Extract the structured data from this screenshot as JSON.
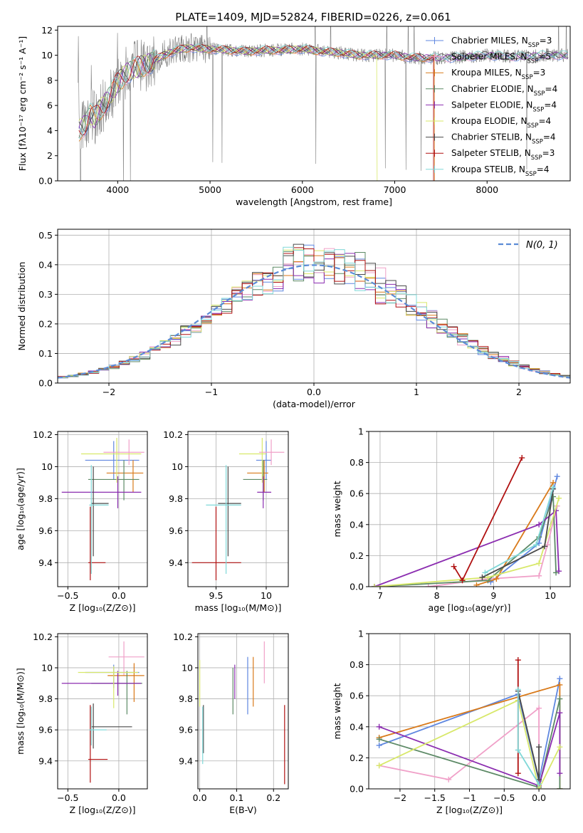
{
  "figure": {
    "title": "PLATE=1409, MJD=52824, FIBERID=0226, z=0.061"
  },
  "colors": {
    "Chabrier MILES": "#5f87e0",
    "Salpeter MILES": "#f0a0c8",
    "Kroupa MILES": "#d97a1a",
    "Chabrier ELODIE": "#5d8a66",
    "Salpeter ELODIE": "#8b2db0",
    "Kroupa ELODIE": "#d8e86a",
    "Chabrier STELIB": "#4a4a4a",
    "Salpeter STELIB": "#b01010",
    "Kroupa STELIB": "#80d8d8",
    "data": "#808080"
  },
  "chart_data": [
    {
      "id": "spectrum",
      "type": "line",
      "xlabel": "wavelength [Angstrom, rest frame]",
      "ylabel": "Flux [fλ10⁻¹⁷ erg cm⁻² s⁻¹ A⁻¹]",
      "xlim": [
        3350,
        8900
      ],
      "ylim": [
        0,
        12.3
      ],
      "xticks": [
        4000,
        5000,
        6000,
        7000,
        8000
      ],
      "yticks": [
        0,
        2,
        4,
        6,
        8,
        10,
        12
      ],
      "legend_position": "top-right",
      "legend": [
        {
          "name": "Chabrier MILES",
          "sub": "SSP",
          "n": "3"
        },
        {
          "name": "Salpeter MILES",
          "sub": "SSP",
          "n": "5"
        },
        {
          "name": "Kroupa MILES",
          "sub": "SSP",
          "n": "3"
        },
        {
          "name": "Chabrier ELODIE",
          "sub": "SSP",
          "n": "4"
        },
        {
          "name": "Salpeter ELODIE",
          "sub": "SSP",
          "n": "4"
        },
        {
          "name": "Kroupa ELODIE",
          "sub": "SSP",
          "n": "4"
        },
        {
          "name": "Chabrier STELIB",
          "sub": "SSP",
          "n": "4"
        },
        {
          "name": "Salpeter STELIB",
          "sub": "SSP",
          "n": "3"
        },
        {
          "name": "Kroupa STELIB",
          "sub": "SSP",
          "n": "4"
        }
      ],
      "continuum": {
        "x": [
          3580,
          3650,
          3700,
          3750,
          3800,
          3850,
          3900,
          3950,
          4000,
          4100,
          4200,
          4300,
          4400,
          4500,
          4600,
          4700,
          4800,
          4900,
          5000,
          5200,
          5400,
          5600,
          5800,
          6000,
          6200,
          6400,
          6600,
          6800,
          7000,
          7200,
          7400,
          7600,
          7800,
          8000,
          8200,
          8400,
          8600,
          8800
        ],
        "y": [
          4.0,
          4.5,
          5.3,
          5.0,
          5.6,
          6.0,
          6.6,
          7.2,
          7.8,
          8.6,
          9.0,
          9.2,
          9.6,
          10.0,
          10.3,
          10.5,
          10.6,
          10.5,
          10.5,
          10.4,
          10.3,
          10.4,
          10.4,
          10.5,
          10.3,
          10.2,
          10.0,
          10.0,
          10.0,
          9.8,
          9.8,
          9.8,
          9.9,
          10.0,
          9.9,
          9.9,
          10.0,
          10.0
        ]
      }
    },
    {
      "id": "residuals",
      "type": "histogram",
      "xlabel": "(data-model)/error",
      "ylabel": "Normed distribution",
      "xlim": [
        -2.5,
        2.5
      ],
      "ylim": [
        0,
        0.52
      ],
      "xticks": [
        -2,
        -1,
        0,
        1,
        2
      ],
      "yticks": [
        0.0,
        0.1,
        0.2,
        0.3,
        0.4,
        0.5
      ],
      "legend_position": "top-right",
      "legend": [
        {
          "name": "N(0,1)"
        }
      ],
      "bin_edges": [
        -2.5,
        -2.4,
        -2.3,
        -2.2,
        -2.1,
        -2.0,
        -1.9,
        -1.8,
        -1.7,
        -1.6,
        -1.5,
        -1.4,
        -1.3,
        -1.2,
        -1.1,
        -1.0,
        -0.9,
        -0.8,
        -0.7,
        -0.6,
        -0.5,
        -0.4,
        -0.3,
        -0.2,
        -0.1,
        0.0,
        0.1,
        0.2,
        0.3,
        0.4,
        0.5,
        0.6,
        0.7,
        0.8,
        0.9,
        1.0,
        1.1,
        1.2,
        1.3,
        1.4,
        1.5,
        1.6,
        1.7,
        1.8,
        1.9,
        2.0,
        2.1,
        2.2,
        2.3,
        2.4,
        2.5
      ],
      "base_density": [
        0.02,
        0.024,
        0.03,
        0.037,
        0.045,
        0.055,
        0.066,
        0.079,
        0.093,
        0.11,
        0.128,
        0.148,
        0.17,
        0.19,
        0.215,
        0.24,
        0.262,
        0.29,
        0.31,
        0.33,
        0.35,
        0.365,
        0.38,
        0.39,
        0.395,
        0.4,
        0.395,
        0.39,
        0.38,
        0.365,
        0.35,
        0.33,
        0.31,
        0.29,
        0.262,
        0.24,
        0.215,
        0.19,
        0.17,
        0.148,
        0.128,
        0.11,
        0.093,
        0.079,
        0.066,
        0.055,
        0.045,
        0.037,
        0.03,
        0.024
      ]
    },
    {
      "id": "age-vs-Z",
      "type": "errorbar",
      "xlabel": "Z [log₁₀(Z/Z⊙)]",
      "ylabel": "age  [log₁₀(age/yr)]",
      "xlim": [
        -0.6,
        0.28
      ],
      "ylim": [
        9.25,
        10.22
      ],
      "xticks": [
        -0.5,
        0.0
      ],
      "yticks": [
        9.4,
        9.6,
        9.8,
        10.0,
        10.2
      ],
      "points": [
        {
          "model": "Chabrier MILES",
          "x": -0.05,
          "xerr": [
            0.28,
            0.25
          ],
          "y": 10.04,
          "yerr": [
            0.12,
            0.12
          ]
        },
        {
          "model": "Salpeter MILES",
          "x": 0.1,
          "xerr": [
            0.25,
            0.15
          ],
          "y": 10.09,
          "yerr": [
            0.08,
            0.08
          ]
        },
        {
          "model": "Kroupa MILES",
          "x": 0.14,
          "xerr": [
            0.26,
            0.1
          ],
          "y": 9.96,
          "yerr": [
            0.12,
            0.08
          ]
        },
        {
          "model": "Chabrier ELODIE",
          "x": 0.05,
          "xerr": [
            0.35,
            0.15
          ],
          "y": 9.92,
          "yerr": [
            0.13,
            0.12
          ]
        },
        {
          "model": "Salpeter ELODIE",
          "x": -0.01,
          "xerr": [
            0.55,
            0.23
          ],
          "y": 9.84,
          "yerr": [
            0.1,
            0.1
          ]
        },
        {
          "model": "Kroupa ELODIE",
          "x": -0.02,
          "xerr": [
            0.35,
            0.24
          ],
          "y": 10.08,
          "yerr": [
            0.18,
            0.1
          ]
        },
        {
          "model": "Chabrier STELIB",
          "x": -0.25,
          "xerr": [
            0.02,
            0.15
          ],
          "y": 9.77,
          "yerr": [
            0.33,
            0.23
          ]
        },
        {
          "model": "Salpeter STELIB",
          "x": -0.28,
          "xerr": [
            0.02,
            0.15
          ],
          "y": 9.4,
          "yerr": [
            0.11,
            0.35
          ]
        },
        {
          "model": "Kroupa STELIB",
          "x": -0.27,
          "xerr": [
            0.02,
            0.17
          ],
          "y": 9.76,
          "yerr": [
            0.43,
            0.25
          ]
        }
      ]
    },
    {
      "id": "age-vs-mass",
      "type": "errorbar",
      "xlabel": "mass [log₁₀(M/M⊙)]",
      "ylabel": "",
      "xlim": [
        9.22,
        10.22
      ],
      "ylim": [
        9.25,
        10.22
      ],
      "xticks": [
        9.5,
        10.0
      ],
      "yticks": [
        9.4,
        9.6,
        9.8,
        10.0,
        10.2
      ],
      "points": [
        {
          "model": "Chabrier MILES",
          "x": 10.0,
          "xerr": [
            0.1,
            0.05
          ],
          "y": 10.04,
          "yerr": [
            0.12,
            0.12
          ]
        },
        {
          "model": "Salpeter MILES",
          "x": 10.05,
          "xerr": [
            0.12,
            0.13
          ],
          "y": 10.09,
          "yerr": [
            0.08,
            0.08
          ]
        },
        {
          "model": "Kroupa MILES",
          "x": 9.98,
          "xerr": [
            0.17,
            0.04
          ],
          "y": 9.96,
          "yerr": [
            0.12,
            0.08
          ]
        },
        {
          "model": "Chabrier ELODIE",
          "x": 9.97,
          "xerr": [
            0.2,
            0.04
          ],
          "y": 9.92,
          "yerr": [
            0.13,
            0.12
          ]
        },
        {
          "model": "Salpeter ELODIE",
          "x": 9.97,
          "xerr": [
            0.06,
            0.08
          ],
          "y": 9.84,
          "yerr": [
            0.1,
            0.1
          ]
        },
        {
          "model": "Kroupa ELODIE",
          "x": 9.96,
          "xerr": [
            0.23,
            0.04
          ],
          "y": 10.08,
          "yerr": [
            0.18,
            0.1
          ]
        },
        {
          "model": "Chabrier STELIB",
          "x": 9.62,
          "xerr": [
            0.1,
            0.13
          ],
          "y": 9.77,
          "yerr": [
            0.33,
            0.23
          ]
        },
        {
          "model": "Salpeter STELIB",
          "x": 9.5,
          "xerr": [
            0.24,
            0.25
          ],
          "y": 9.4,
          "yerr": [
            0.11,
            0.35
          ]
        },
        {
          "model": "Kroupa STELIB",
          "x": 9.6,
          "xerr": [
            0.2,
            0.15
          ],
          "y": 9.76,
          "yerr": [
            0.43,
            0.25
          ]
        }
      ]
    },
    {
      "id": "weight-vs-age",
      "type": "line",
      "xlabel": "age  [log₁₀(age/yr)]",
      "ylabel": "mass weight",
      "xlim": [
        6.8,
        10.35
      ],
      "ylim": [
        0,
        1.0
      ],
      "xticks": [
        7,
        8,
        9,
        10
      ],
      "yticks": [
        0.0,
        0.2,
        0.4,
        0.6,
        0.8,
        1.0
      ],
      "series": [
        {
          "model": "Chabrier MILES",
          "x": [
            8.95,
            9.8,
            10.12
          ],
          "y": [
            0.03,
            0.28,
            0.71
          ]
        },
        {
          "model": "Salpeter MILES",
          "x": [
            7.85,
            8.9,
            9.8,
            9.95,
            10.12
          ],
          "y": [
            0.0,
            0.05,
            0.07,
            0.27,
            0.52
          ]
        },
        {
          "model": "Kroupa MILES",
          "x": [
            8.7,
            9.05,
            10.05
          ],
          "y": [
            0.01,
            0.05,
            0.67
          ]
        },
        {
          "model": "Chabrier ELODIE",
          "x": [
            6.9,
            8.9,
            9.8,
            10.05,
            10.1
          ],
          "y": [
            0.0,
            0.04,
            0.32,
            0.58,
            0.09
          ]
        },
        {
          "model": "Salpeter ELODIE",
          "x": [
            6.9,
            9.8,
            10.1,
            10.15
          ],
          "y": [
            0.0,
            0.4,
            0.49,
            0.1
          ]
        },
        {
          "model": "Kroupa ELODIE",
          "x": [
            6.9,
            8.9,
            9.8,
            10.15
          ],
          "y": [
            0.0,
            0.06,
            0.15,
            0.57
          ]
        },
        {
          "model": "Chabrier STELIB",
          "x": [
            8.8,
            9.9,
            10.05
          ],
          "y": [
            0.06,
            0.26,
            0.63
          ]
        },
        {
          "model": "Salpeter STELIB",
          "x": [
            8.3,
            8.45,
            9.5
          ],
          "y": [
            0.13,
            0.04,
            0.83
          ]
        },
        {
          "model": "Kroupa STELIB",
          "x": [
            8.85,
            9.75,
            10.05
          ],
          "y": [
            0.09,
            0.27,
            0.64
          ]
        }
      ]
    },
    {
      "id": "mass-vs-Z",
      "type": "errorbar",
      "xlabel": "Z [log₁₀(Z/Z⊙)]",
      "ylabel": "mass [log₁₀(M/M⊙)]",
      "xlim": [
        -0.6,
        0.28
      ],
      "ylim": [
        9.22,
        10.22
      ],
      "xticks": [
        -0.5,
        0.0
      ],
      "yticks": [
        9.4,
        9.6,
        9.8,
        10.0,
        10.2
      ],
      "points": [
        {
          "model": "Chabrier MILES",
          "x": -0.05,
          "xerr": [
            0.28,
            0.25
          ],
          "y": 9.97,
          "yerr": [
            0.1,
            0.05
          ]
        },
        {
          "model": "Salpeter MILES",
          "x": 0.05,
          "xerr": [
            0.15,
            0.2
          ],
          "y": 10.07,
          "yerr": [
            0.12,
            0.1
          ]
        },
        {
          "model": "Kroupa MILES",
          "x": 0.15,
          "xerr": [
            0.26,
            0.1
          ],
          "y": 9.95,
          "yerr": [
            0.17,
            0.08
          ]
        },
        {
          "model": "Chabrier ELODIE",
          "x": 0.08,
          "xerr": [
            0.35,
            0.15
          ],
          "y": 9.9,
          "yerr": [
            0.2,
            0.08
          ]
        },
        {
          "model": "Salpeter ELODIE",
          "x": -0.01,
          "xerr": [
            0.55,
            0.23
          ],
          "y": 9.9,
          "yerr": [
            0.08,
            0.08
          ]
        },
        {
          "model": "Kroupa ELODIE",
          "x": -0.05,
          "xerr": [
            0.35,
            0.24
          ],
          "y": 9.97,
          "yerr": [
            0.23,
            0.04
          ]
        },
        {
          "model": "Chabrier STELIB",
          "x": -0.25,
          "xerr": [
            0.02,
            0.38
          ],
          "y": 9.62,
          "yerr": [
            0.14,
            0.15
          ]
        },
        {
          "model": "Salpeter STELIB",
          "x": -0.28,
          "xerr": [
            0.02,
            0.17
          ],
          "y": 9.41,
          "yerr": [
            0.15,
            0.35
          ]
        },
        {
          "model": "Kroupa STELIB",
          "x": -0.27,
          "xerr": [
            0.02,
            0.15
          ],
          "y": 9.6,
          "yerr": [
            0.1,
            0.15
          ]
        }
      ]
    },
    {
      "id": "mass-vs-EBV",
      "type": "errorbar",
      "xlabel": "E(B-V)",
      "ylabel": "",
      "xlim": [
        -0.005,
        0.24
      ],
      "ylim": [
        9.22,
        10.22
      ],
      "xticks": [
        0.0,
        0.1,
        0.2
      ],
      "yticks": [
        9.4,
        9.6,
        9.8,
        10.0,
        10.2
      ],
      "points": [
        {
          "model": "Chabrier MILES",
          "x": 0.13,
          "y": 9.88,
          "yerr": [
            0.18,
            0.19
          ]
        },
        {
          "model": "Salpeter MILES",
          "x": 0.175,
          "y": 10.04,
          "yerr": [
            0.14,
            0.13
          ]
        },
        {
          "model": "Kroupa MILES",
          "x": 0.145,
          "y": 9.96,
          "yerr": [
            0.21,
            0.11
          ]
        },
        {
          "model": "Chabrier ELODIE",
          "x": 0.09,
          "y": 9.85,
          "yerr": [
            0.15,
            0.15
          ]
        },
        {
          "model": "Salpeter ELODIE",
          "x": 0.095,
          "y": 9.9,
          "yerr": [
            0.1,
            0.12
          ]
        },
        {
          "model": "Kroupa ELODIE",
          "x": 0.0,
          "y": 9.95,
          "yerr": [
            0.2,
            0.1
          ]
        },
        {
          "model": "Chabrier STELIB",
          "x": 0.01,
          "y": 9.6,
          "yerr": [
            0.15,
            0.16
          ]
        },
        {
          "model": "Salpeter STELIB",
          "x": 0.23,
          "y": 9.5,
          "yerr": [
            0.25,
            0.26
          ]
        },
        {
          "model": "Kroupa STELIB",
          "x": 0.008,
          "y": 9.55,
          "yerr": [
            0.17,
            0.2
          ]
        }
      ]
    },
    {
      "id": "weight-vs-Z",
      "type": "line",
      "xlabel": "Z [log₁₀(Z/Z⊙)]",
      "ylabel": "mass weight",
      "xlim": [
        -2.45,
        0.45
      ],
      "ylim": [
        0,
        1.0
      ],
      "xticks": [
        -2.0,
        -1.5,
        -1.0,
        -0.5,
        0.0
      ],
      "yticks": [
        0.0,
        0.2,
        0.4,
        0.6,
        0.8,
        1.0
      ],
      "series": [
        {
          "model": "Chabrier MILES",
          "x": [
            -2.3,
            -0.3,
            0.0,
            0.3
          ],
          "y": [
            0.28,
            0.61,
            0.05,
            0.71
          ]
        },
        {
          "model": "Salpeter MILES",
          "x": [
            -2.3,
            -1.3,
            0.0,
            0.0
          ],
          "y": [
            0.15,
            0.06,
            0.52,
            0.0
          ]
        },
        {
          "model": "Kroupa MILES",
          "x": [
            -2.3,
            0.3,
            0.3
          ],
          "y": [
            0.33,
            0.67,
            0.0
          ]
        },
        {
          "model": "Chabrier ELODIE",
          "x": [
            -2.3,
            0.0,
            0.3,
            0.3
          ],
          "y": [
            0.32,
            0.01,
            0.58,
            0.0
          ]
        },
        {
          "model": "Salpeter ELODIE",
          "x": [
            -2.3,
            0.0,
            0.3,
            0.3
          ],
          "y": [
            0.4,
            0.02,
            0.49,
            0.1
          ]
        },
        {
          "model": "Kroupa ELODIE",
          "x": [
            -2.3,
            -0.3,
            0.0,
            0.3
          ],
          "y": [
            0.15,
            0.57,
            0.0,
            0.27
          ]
        },
        {
          "model": "Chabrier STELIB",
          "x": [
            -0.3,
            0.0,
            0.0
          ],
          "y": [
            0.63,
            0.06,
            0.27
          ]
        },
        {
          "model": "Salpeter STELIB",
          "x": [
            -0.3,
            -0.3
          ],
          "y": [
            0.83,
            0.1
          ]
        },
        {
          "model": "Kroupa STELIB",
          "x": [
            -0.3,
            -0.3,
            0.0
          ],
          "y": [
            0.64,
            0.25,
            0.03
          ]
        }
      ]
    }
  ]
}
